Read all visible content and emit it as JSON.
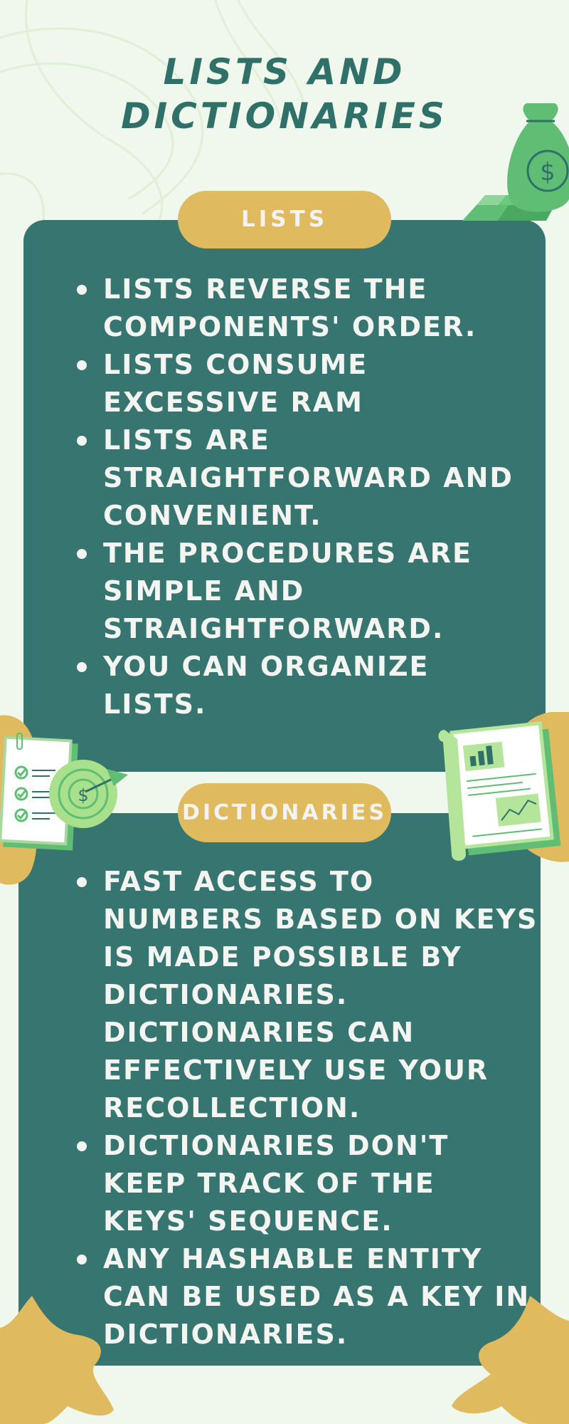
{
  "title": {
    "line1": "LISTS AND",
    "line2": "DICTIONARIES"
  },
  "lists_section": {
    "label": "LISTS",
    "items": [
      [
        "LISTS REVERSE THE",
        "COMPONENTS' ORDER."
      ],
      [
        "LISTS CONSUME",
        "EXCESSIVE RAM"
      ],
      [
        "LISTS ARE",
        "STRAIGHTFORWARD AND",
        "CONVENIENT."
      ],
      [
        "THE PROCEDURES ARE",
        "SIMPLE AND",
        "STRAIGHTFORWARD."
      ],
      [
        "YOU CAN ORGANIZE",
        "LISTS."
      ]
    ]
  },
  "dictionaries_section": {
    "label": "DICTIONARIES",
    "items": [
      [
        "FAST ACCESS TO",
        "NUMBERS BASED ON KEYS",
        "IS MADE POSSIBLE BY",
        "DICTIONARIES.",
        "DICTIONARIES CAN",
        "EFFECTIVELY USE YOUR",
        "RECOLLECTION."
      ],
      [
        "DICTIONARIES DON'T",
        "KEEP TRACK OF THE",
        "KEYS' SEQUENCE."
      ],
      [
        "ANY HASHABLE ENTITY",
        "CAN BE USED AS A KEY IN",
        "DICTIONARIES."
      ]
    ]
  },
  "decorations": {
    "money_bag": "money-bag-icon",
    "gold_bars": "gold-bars-icon",
    "checklist": "checklist-icon",
    "target": "dollar-target-icon",
    "report": "financial-report-icon",
    "blobs": "mustard-blob-shapes"
  },
  "colors": {
    "background": "#f0f7ec",
    "panel": "#377570",
    "title": "#2f7068",
    "pill": "#dfba5e",
    "text": "#f4f4f1",
    "accent_green": "#5fbd74"
  }
}
